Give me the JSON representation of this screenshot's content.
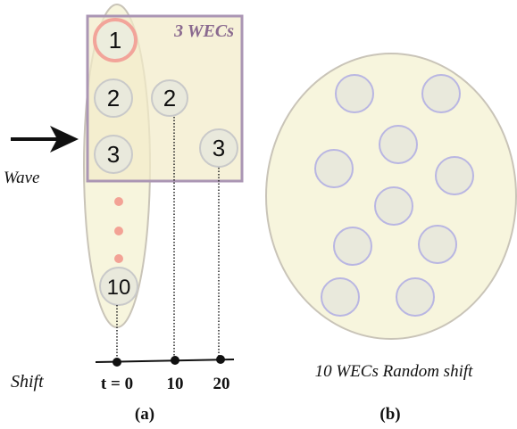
{
  "panel_a": {
    "box_label": "3 WECs",
    "wave_label": "Wave",
    "shift_label": "Shift",
    "column_numbers": [
      "1",
      "2",
      "3",
      "10"
    ],
    "shifted_numbers": [
      "2",
      "3"
    ],
    "ticks": [
      "t = 0",
      "10",
      "20"
    ],
    "caption": "(a)"
  },
  "panel_b": {
    "title": "10 WECs Random shift",
    "caption": "(b)"
  },
  "colors": {
    "ellipse_fill": "#f7f5dd",
    "ellipse_stroke": "#c9c4b8",
    "box_fill": "#f2ecc9",
    "box_stroke": "#ab96b4",
    "node_fill": "#e9e9dc",
    "node_stroke_gray": "#c9c9c9",
    "node_stroke_purple": "#b9b6e2",
    "highlight_stroke": "#f2a49a",
    "dots": "#f3a295",
    "box_label": "#8a6a8f"
  }
}
